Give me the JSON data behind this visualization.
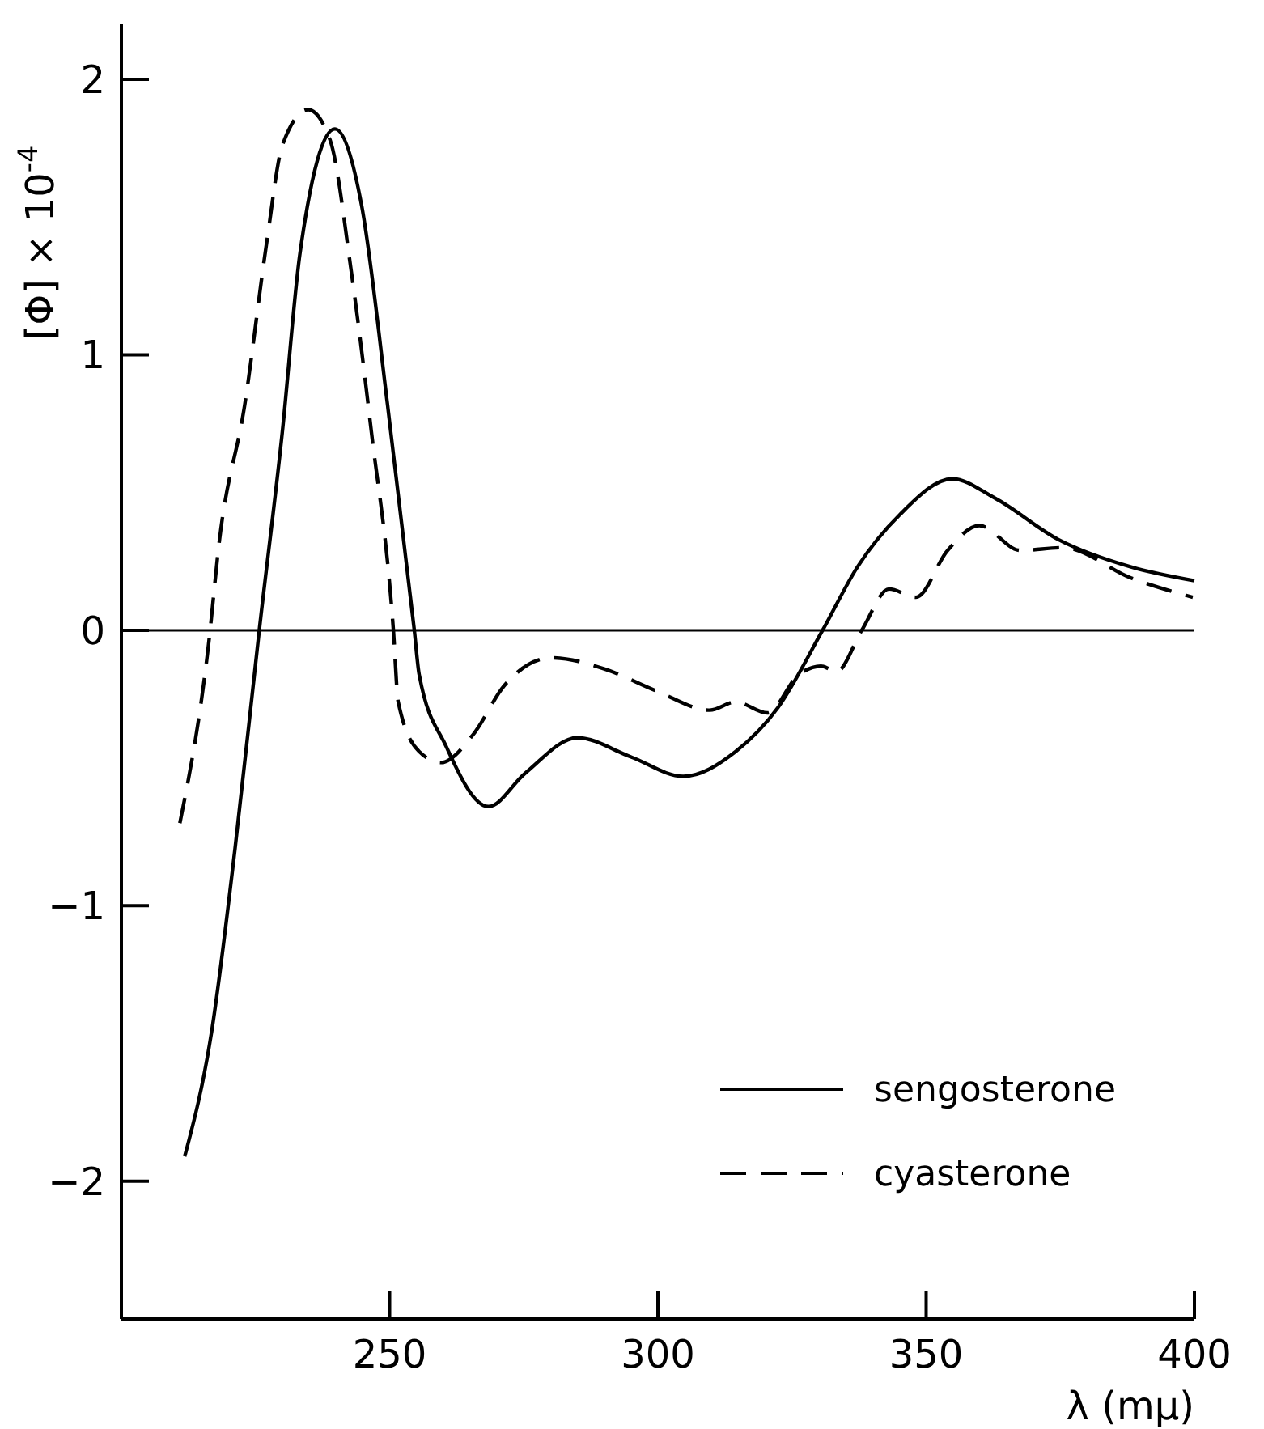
{
  "chart_data": {
    "type": "line",
    "xlabel": "λ (mμ)",
    "ylabel": "[Φ] × 10$^{-4}$",
    "xlim": [
      200,
      400
    ],
    "ylim": [
      -2.5,
      2.2
    ],
    "xticks": [
      250,
      300,
      350,
      400
    ],
    "yticks": [
      -2,
      -1,
      0,
      1,
      2
    ],
    "grid": false,
    "legend": "bottom right",
    "ref_lines": [
      {
        "axis": "y",
        "value": 0,
        "color": "#000000"
      }
    ],
    "series": [
      {
        "name": "sengosterone",
        "color": "#000000",
        "line_style": "solid",
        "x": [
          211.8,
          216.8,
          221.2,
          225.7,
          230,
          233.3,
          239.8,
          244.8,
          249.6,
          254.6,
          255.5,
          260.5,
          268.4,
          275.2,
          285,
          295,
          304.7,
          314.5,
          322.4,
          330.7,
          337.2,
          345.1,
          354.9,
          362.8,
          374.6,
          388.2,
          400
        ],
        "values": [
          -1.91,
          -1.46,
          -0.79,
          0,
          0.72,
          1.37,
          1.82,
          1.54,
          0.82,
          0,
          -0.16,
          -0.42,
          -0.64,
          -0.52,
          -0.39,
          -0.46,
          -0.53,
          -0.44,
          -0.28,
          0,
          0.23,
          0.42,
          0.55,
          0.48,
          0.33,
          0.23,
          0.18
        ]
      },
      {
        "name": "cyasterone",
        "color": "#000000",
        "line_style": "dashed",
        "x": [
          210.9,
          216.2,
          218.3,
          223,
          227.1,
          230,
          234.8,
          238.9,
          242.8,
          246.6,
          250.7,
          251.6,
          255.5,
          259.6,
          265.5,
          271.4,
          280.2,
          290,
          299.7,
          309.7,
          314.5,
          320.4,
          326.3,
          330.4,
          333.3,
          338,
          343.1,
          348.1,
          354,
          359.9,
          367.6,
          375.5,
          388.2,
          399.7
        ],
        "values": [
          -0.7,
          -0.06,
          0.33,
          0.82,
          1.41,
          1.76,
          1.89,
          1.78,
          1.31,
          0.72,
          0,
          -0.26,
          -0.44,
          -0.48,
          -0.38,
          -0.2,
          -0.1,
          -0.14,
          -0.22,
          -0.29,
          -0.26,
          -0.3,
          -0.16,
          -0.13,
          -0.15,
          0,
          0.15,
          0.12,
          0.29,
          0.38,
          0.29,
          0.3,
          0.19,
          0.12
        ]
      }
    ]
  }
}
